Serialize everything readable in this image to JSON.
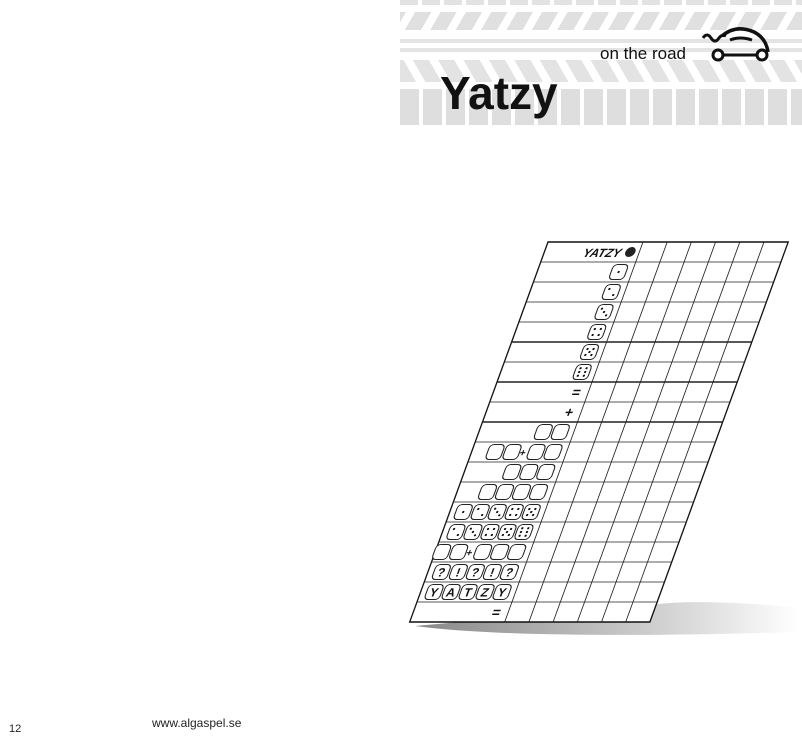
{
  "header": {
    "title": "Yatzy",
    "subtitle": "on the road",
    "logo_icon": "car-icon"
  },
  "scorecard": {
    "player_columns": 6,
    "rows": [
      {
        "type": "text",
        "text": "YATZY",
        "icon": "yatzy-logo-icon"
      },
      {
        "type": "dice",
        "faces": [
          "1"
        ]
      },
      {
        "type": "dice",
        "faces": [
          "2"
        ]
      },
      {
        "type": "dice",
        "faces": [
          "3"
        ]
      },
      {
        "type": "dice",
        "faces": [
          "4"
        ]
      },
      {
        "type": "dice",
        "faces": [
          "5"
        ]
      },
      {
        "type": "dice",
        "faces": [
          "6"
        ]
      },
      {
        "type": "text",
        "text": "="
      },
      {
        "type": "text",
        "text": "+"
      },
      {
        "type": "dice",
        "faces": [
          "",
          ""
        ]
      },
      {
        "type": "dice",
        "faces": [
          "",
          "",
          "+",
          "",
          ""
        ]
      },
      {
        "type": "dice",
        "faces": [
          "",
          "",
          ""
        ]
      },
      {
        "type": "dice",
        "faces": [
          "",
          "",
          "",
          ""
        ]
      },
      {
        "type": "dice",
        "faces": [
          "1",
          "2",
          "3",
          "4",
          "5"
        ]
      },
      {
        "type": "dice",
        "faces": [
          "2",
          "3",
          "4",
          "5",
          "6"
        ]
      },
      {
        "type": "dice",
        "faces": [
          "",
          "",
          "+",
          "",
          "",
          ""
        ]
      },
      {
        "type": "dice",
        "faces": [
          "?",
          "!",
          "?",
          "!",
          "?"
        ]
      },
      {
        "type": "dice",
        "faces": [
          "Y",
          "A",
          "T",
          "Z",
          "Y"
        ]
      },
      {
        "type": "text",
        "text": "="
      }
    ]
  },
  "footer": {
    "page_number": "12",
    "url": "www.algaspel.se"
  }
}
